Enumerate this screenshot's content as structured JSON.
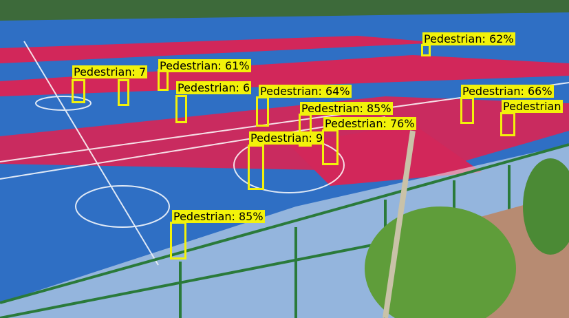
{
  "detections": [
    {
      "label": "Pedestrian: 62%"
    },
    {
      "label": "Pedestrian: 7"
    },
    {
      "label": "Pedestrian: 61%"
    },
    {
      "label": "Pedestrian: 6"
    },
    {
      "label": "Pedestrian: 64%"
    },
    {
      "label": "Pedestrian: 66%"
    },
    {
      "label": "Pedestrian"
    },
    {
      "label": "Pedestrian: 85%"
    },
    {
      "label": "Pedestrian: 76%"
    },
    {
      "label": "Pedestrian: 9"
    },
    {
      "label": "Pedestrian: 85%"
    }
  ],
  "colors": {
    "court_blue": "#2f6fc4",
    "court_red": "#d2275a",
    "box_yellow": "#f2f20a",
    "fence_green": "#2a7a3a"
  }
}
